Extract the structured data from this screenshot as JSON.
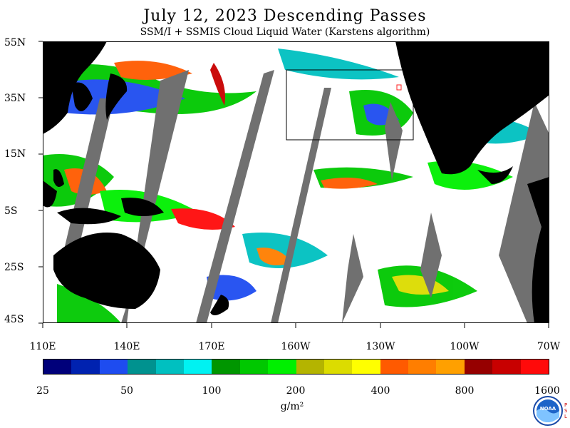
{
  "title": "July 12, 2023  Descending Passes",
  "subtitle": "SSM/I + SSMIS Cloud Liquid Water (Karstens algorithm)",
  "lat_labels": [
    "55N",
    "35N",
    "15N",
    "5S",
    "25S",
    "45S"
  ],
  "lon_labels": [
    "110E",
    "140E",
    "170E",
    "160W",
    "130W",
    "100W",
    "70W"
  ],
  "colorbar": {
    "ticks": [
      "25",
      "50",
      "100",
      "200",
      "400",
      "800",
      "1600"
    ],
    "units": "g/m²",
    "colors": [
      "#00007a",
      "#0022b0",
      "#1e4cf0",
      "#00928f",
      "#00c0c0",
      "#00f2f2",
      "#009600",
      "#00c800",
      "#00f000",
      "#b4b400",
      "#dcdc00",
      "#ffff00",
      "#ff5a00",
      "#ff7e00",
      "#ffa000",
      "#960000",
      "#c80000",
      "#ff0a0a"
    ]
  },
  "map_colors": {
    "land": "#000000",
    "no_data": "#707070",
    "clear": "#ffffff",
    "box": "#000000",
    "marker": "#ff2020"
  },
  "logo": {
    "text": "NOAA",
    "side_text": "PSL"
  }
}
